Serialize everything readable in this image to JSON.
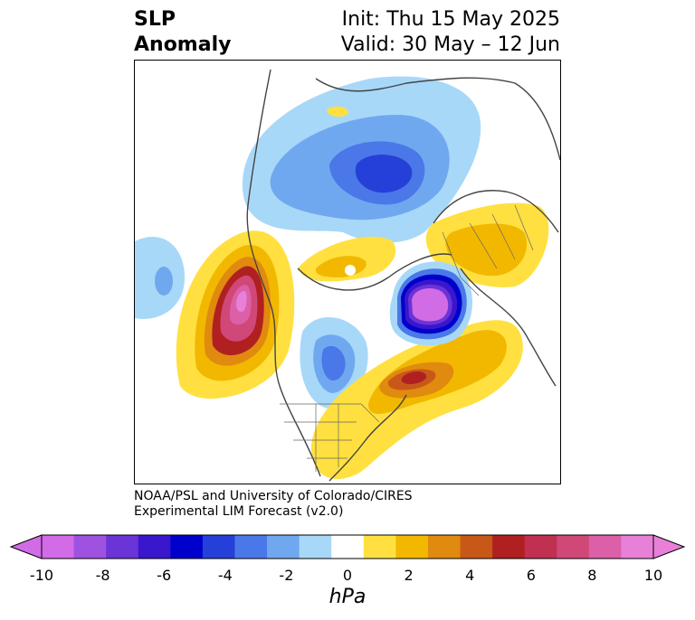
{
  "title": {
    "left_line1": "SLP",
    "left_line2": "Anomaly",
    "right_line1": "Init: Thu 15 May 2025",
    "right_line2": "Valid: 30 May – 12 Jun"
  },
  "credit": {
    "line1": "NOAA/PSL and University of Colorado/CIRES",
    "line2": "Experimental LIM Forecast (v2.0)"
  },
  "colorbar": {
    "units": "hPa",
    "tick_labels": [
      "-10",
      "-8",
      "-6",
      "-4",
      "-2",
      "0",
      "2",
      "4",
      "6",
      "8",
      "10"
    ],
    "colors": [
      "#d26be6",
      "#9f52e0",
      "#6b34d6",
      "#3a16cc",
      "#0000cc",
      "#2540d8",
      "#4a78e8",
      "#70a8f0",
      "#a8d8f8",
      "#ffffff",
      "#ffe040",
      "#f2b800",
      "#e08a10",
      "#c85818",
      "#b02020",
      "#c03050",
      "#d04878",
      "#dc60a8",
      "#e880d8"
    ]
  },
  "map": {
    "features": [
      {
        "name": "north-pacific-positive-anomaly",
        "sign": "positive",
        "peak_hpa": 10
      },
      {
        "name": "north-atlantic-negative-anomaly",
        "sign": "negative",
        "peak_hpa": -10
      },
      {
        "name": "western-atlantic-positive-anomaly",
        "sign": "positive",
        "peak_hpa": 6
      },
      {
        "name": "siberia-negative-anomaly",
        "sign": "negative",
        "peak_hpa": -6
      },
      {
        "name": "europe-positive-anomaly",
        "sign": "positive",
        "peak_hpa": 3
      },
      {
        "name": "central-north-america-negative-anomaly",
        "sign": "negative",
        "peak_hpa": -5
      }
    ]
  }
}
